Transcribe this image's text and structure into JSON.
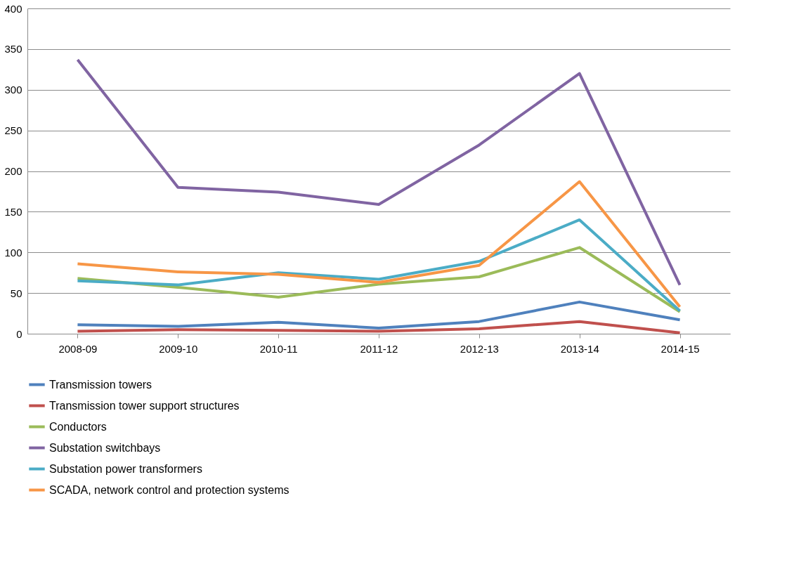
{
  "chart_data": {
    "type": "line",
    "categories": [
      "2008-09",
      "2009-10",
      "2010-11",
      "2011-12",
      "2012-13",
      "2013-14",
      "2014-15"
    ],
    "series": [
      {
        "name": "Transmission towers",
        "color": "#4f81bd",
        "values": [
          11,
          9,
          14,
          7,
          15,
          39,
          17
        ]
      },
      {
        "name": "Transmission tower support structures",
        "color": "#c0504d",
        "values": [
          3,
          5,
          4,
          3,
          6,
          15,
          1
        ]
      },
      {
        "name": "Conductors",
        "color": "#9bbb59",
        "values": [
          68,
          57,
          45,
          61,
          70,
          106,
          27
        ]
      },
      {
        "name": "Substation switchbays",
        "color": "#8064a2",
        "values": [
          337,
          180,
          174,
          159,
          232,
          320,
          60
        ]
      },
      {
        "name": "Substation power transformers",
        "color": "#4bacc6",
        "values": [
          65,
          60,
          75,
          67,
          89,
          140,
          28
        ]
      },
      {
        "name": "SCADA, network control and protection systems",
        "color": "#f79646",
        "values": [
          86,
          76,
          73,
          63,
          84,
          187,
          33
        ]
      }
    ],
    "ylim": [
      0,
      400
    ],
    "yticks": [
      0,
      50,
      100,
      150,
      200,
      250,
      300,
      350,
      400
    ],
    "grid": "y",
    "legend": "bottom",
    "marker": "none",
    "line_style": "solid"
  }
}
